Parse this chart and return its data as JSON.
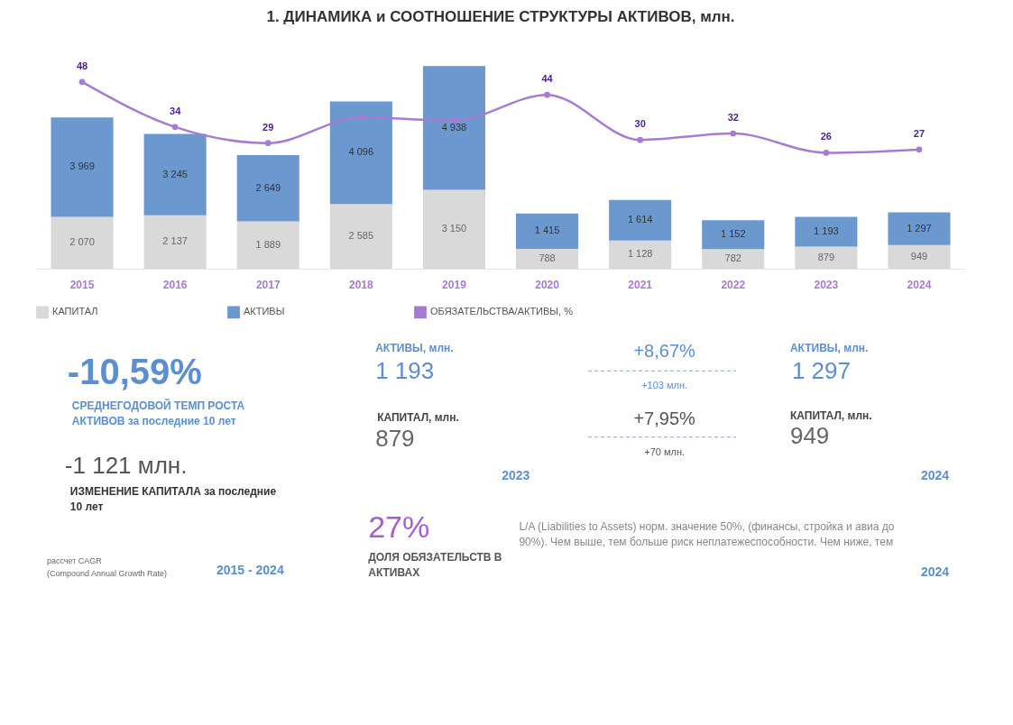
{
  "chart_data": [
    {
      "type": "bar",
      "title": "1. ДИНАМИКА и СООТНОШЕНИЕ СТРУКТУРЫ АКТИВОВ, млн.",
      "stacked": true,
      "categories": [
        "2015",
        "2016",
        "2017",
        "2018",
        "2019",
        "2020",
        "2021",
        "2022",
        "2023",
        "2024"
      ],
      "tick_labels": "x",
      "grid": false,
      "legend": "bottom",
      "series": [
        {
          "name": "КАПИТАЛ",
          "color": "#d9d9d9",
          "values": [
            2070,
            2137,
            1889,
            2585,
            3150,
            788,
            1128,
            782,
            879,
            949
          ],
          "value_labels": [
            "2 070",
            "2 137",
            "1 889",
            "2 585",
            "3 150",
            "788",
            "1 128",
            "782",
            "879",
            "949"
          ]
        },
        {
          "name": "АКТИВЫ",
          "color": "#6a98cf",
          "values": [
            3969,
            3245,
            2649,
            4096,
            4938,
            1415,
            1614,
            1152,
            1193,
            1297
          ],
          "value_labels": [
            "3 969",
            "3 245",
            "2 649",
            "4 096",
            "4 938",
            "1 415",
            "1 614",
            "1 152",
            "1 193",
            "1 297"
          ]
        },
        {
          "name": "ОБЯЗАТЕЛЬСТВА/АКТИВЫ, %",
          "type": "line",
          "axis": "y2",
          "color": "#a67bd4",
          "marker": "circle",
          "values": [
            48,
            34,
            29,
            37,
            36,
            44,
            30,
            32,
            26,
            27
          ],
          "value_labels": [
            "48",
            "34",
            "29",
            null,
            null,
            "44",
            "30",
            "32",
            "26",
            "27"
          ]
        }
      ]
    },
    {
      "type": "other",
      "annotations": [
        "-10,59%",
        "СРЕДНЕГОДОВОЙ ТЕМП РОСТА\nАКТИВОВ за последние 10 лет",
        "-1 121 млн.",
        "ИЗМЕНЕНИЕ КАПИТАЛА за последние\n10 лет",
        "рассчет CAGR\n(Compound Annual Growth Rate)",
        "2015 - 2024",
        "АКТИВЫ, млн.",
        "1 193",
        "КАПИТАЛ, млн.",
        "879",
        "2023",
        "+8,67%",
        "+103 млн.",
        "+7,95%",
        "+70 млн.",
        "АКТИВЫ, млн.",
        "1 297",
        "КАПИТАЛ, млн.",
        "949",
        "2024",
        "27%",
        "ДОЛЯ ОБЯЗАТЕЛЬСТВ В\nАКТИВАХ",
        "L/A (Liabilities to Assets) норм. значение 50%, (финансы, стройка и авиа до\n90%). Чем выше, тем больше риск неплатежеспособности. Чем ниже, тем",
        "2024"
      ]
    }
  ]
}
